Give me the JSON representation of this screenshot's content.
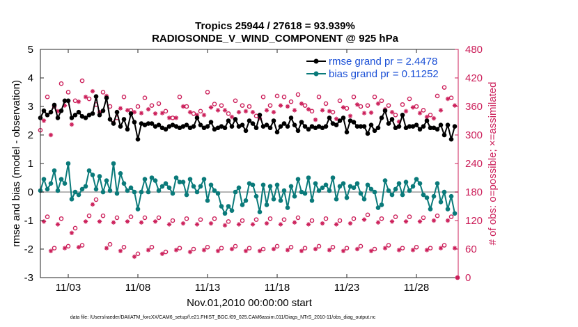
{
  "chart_data": {
    "type": "line",
    "title_line1": "Tropics 25944 / 27618 = 93.939%",
    "title_line2": "RADIOSONDE_V_WIND_COMPONENT @ 925 hPa",
    "xlabel": "Nov.01,2010 00:00:00 start",
    "ylabel_left": "rmse and bias (model - observation)",
    "ylabel_right": "# of obs: o=possible; ×=assimilated",
    "ylim_left": [
      -3,
      5
    ],
    "ylim_right": [
      0,
      480
    ],
    "xlim_days": [
      0.0,
      30.0
    ],
    "yticks_left": [
      "-3",
      "-2",
      "-1",
      "0",
      "1",
      "2",
      "3",
      "4",
      "5"
    ],
    "yticks_right": [
      "0",
      "60",
      "120",
      "180",
      "240",
      "300",
      "360",
      "420",
      "480"
    ],
    "xticks": [
      {
        "day": 2.0,
        "label": "11/03"
      },
      {
        "day": 7.0,
        "label": "11/08"
      },
      {
        "day": 12.0,
        "label": "11/13"
      },
      {
        "day": 17.0,
        "label": "11/18"
      },
      {
        "day": 22.0,
        "label": "11/23"
      },
      {
        "day": 27.0,
        "label": "11/28"
      }
    ],
    "zero_line": 0,
    "legend": [
      {
        "label": "rmse grand pr = 2.4478",
        "color": "#000000"
      },
      {
        "label": "bias grand pr = 0.11252",
        "color": "#0a7a7a"
      }
    ],
    "colors": {
      "rmse": "#000000",
      "bias": "#0a7a7a",
      "obs": "#cc1f5a",
      "zero": "#b5b5b5"
    },
    "footnote": "data file: /Users/raeder/DAI/ATM_forcXX/CAM6_setup/f.e21.FHIST_BGC.f09_025.CAM6assim.011/Diags_NTrS_2010-11/obs_diag_output.nc",
    "series": [
      {
        "name": "rmse",
        "x": [
          0.0,
          0.25,
          0.5,
          0.75,
          1.0,
          1.25,
          1.5,
          1.75,
          2.0,
          2.25,
          2.5,
          2.75,
          3.0,
          3.25,
          3.5,
          3.75,
          4.0,
          4.25,
          4.5,
          4.75,
          5.0,
          5.25,
          5.5,
          5.75,
          6.0,
          6.25,
          6.5,
          6.75,
          7.0,
          7.25,
          7.5,
          7.75,
          8.0,
          8.25,
          8.5,
          8.75,
          9.0,
          9.25,
          9.5,
          9.75,
          10.0,
          10.25,
          10.5,
          10.75,
          11.0,
          11.25,
          11.5,
          11.75,
          12.0,
          12.25,
          12.5,
          12.75,
          13.0,
          13.25,
          13.5,
          13.75,
          14.0,
          14.25,
          14.5,
          14.75,
          15.0,
          15.25,
          15.5,
          15.75,
          16.0,
          16.25,
          16.5,
          16.75,
          17.0,
          17.25,
          17.5,
          17.75,
          18.0,
          18.25,
          18.5,
          18.75,
          19.0,
          19.25,
          19.5,
          19.75,
          20.0,
          20.25,
          20.5,
          20.75,
          21.0,
          21.25,
          21.5,
          21.75,
          22.0,
          22.25,
          22.5,
          22.75,
          23.0,
          23.25,
          23.5,
          23.75,
          24.0,
          24.25,
          24.5,
          24.75,
          25.0,
          25.25,
          25.5,
          25.75,
          26.0,
          26.25,
          26.5,
          26.75,
          27.0,
          27.25,
          27.5,
          27.75,
          28.0,
          28.25,
          28.5,
          28.75,
          29.0,
          29.25,
          29.5,
          29.75
        ],
        "values": [
          2.6,
          2.85,
          2.7,
          2.8,
          3.05,
          2.6,
          2.85,
          3.2,
          3.2,
          2.6,
          2.7,
          2.8,
          2.65,
          2.6,
          2.7,
          2.75,
          3.35,
          2.7,
          2.85,
          3.3,
          2.55,
          2.4,
          2.8,
          2.3,
          2.55,
          2.2,
          2.75,
          2.45,
          1.85,
          2.4,
          2.35,
          2.4,
          2.4,
          2.3,
          2.35,
          2.25,
          2.2,
          2.3,
          2.35,
          2.3,
          2.25,
          2.3,
          2.35,
          2.25,
          2.3,
          2.6,
          2.35,
          2.25,
          2.3,
          2.45,
          2.2,
          2.25,
          2.3,
          2.25,
          2.5,
          2.3,
          2.55,
          2.3,
          2.35,
          2.15,
          2.5,
          2.4,
          2.25,
          2.7,
          2.3,
          2.35,
          2.25,
          2.5,
          2.1,
          2.3,
          2.4,
          2.3,
          2.6,
          2.35,
          2.15,
          2.45,
          2.3,
          2.2,
          2.3,
          2.25,
          2.3,
          2.25,
          2.3,
          2.6,
          2.4,
          2.35,
          2.5,
          2.6,
          2.1,
          2.5,
          2.45,
          2.3,
          2.3,
          2.3,
          2.05,
          2.35,
          2.15,
          2.25,
          2.6,
          2.85,
          2.4,
          2.55,
          2.25,
          2.3,
          2.7,
          2.25,
          2.3,
          2.3,
          2.35,
          2.2,
          2.3,
          2.5,
          2.25,
          2.25,
          2.2,
          2.35,
          2.0,
          2.35,
          1.85,
          2.3
        ]
      },
      {
        "name": "bias",
        "x": [
          0.0,
          0.25,
          0.5,
          0.75,
          1.0,
          1.25,
          1.5,
          1.75,
          2.0,
          2.25,
          2.5,
          2.75,
          3.0,
          3.25,
          3.5,
          3.75,
          4.0,
          4.25,
          4.5,
          4.75,
          5.0,
          5.25,
          5.5,
          5.75,
          6.0,
          6.25,
          6.5,
          6.75,
          7.0,
          7.25,
          7.5,
          7.75,
          8.0,
          8.25,
          8.5,
          8.75,
          9.0,
          9.25,
          9.5,
          9.75,
          10.0,
          10.25,
          10.5,
          10.75,
          11.0,
          11.25,
          11.5,
          11.75,
          12.0,
          12.25,
          12.5,
          12.75,
          13.0,
          13.25,
          13.5,
          13.75,
          14.0,
          14.25,
          14.5,
          14.75,
          15.0,
          15.25,
          15.5,
          15.75,
          16.0,
          16.25,
          16.5,
          16.75,
          17.0,
          17.25,
          17.5,
          17.75,
          18.0,
          18.25,
          18.5,
          18.75,
          19.0,
          19.25,
          19.5,
          19.75,
          20.0,
          20.25,
          20.5,
          20.75,
          21.0,
          21.25,
          21.5,
          21.75,
          22.0,
          22.25,
          22.5,
          22.75,
          23.0,
          23.25,
          23.5,
          23.75,
          24.0,
          24.25,
          24.5,
          24.75,
          25.0,
          25.25,
          25.5,
          25.75,
          26.0,
          26.25,
          26.5,
          26.75,
          27.0,
          27.25,
          27.5,
          27.75,
          28.0,
          28.25,
          28.5,
          28.75,
          29.0,
          29.25,
          29.5,
          29.75
        ],
        "values": [
          0.05,
          0.45,
          0.1,
          0.3,
          0.75,
          0.05,
          0.45,
          0.3,
          1.0,
          -0.25,
          0.0,
          -0.1,
          0.1,
          0.2,
          0.75,
          0.6,
          0.1,
          0.55,
          0.0,
          0.4,
          0.05,
          1.0,
          -0.05,
          0.65,
          0.3,
          0.05,
          0.15,
          0.0,
          -0.6,
          0.0,
          0.45,
          0.0,
          0.5,
          0.4,
          0.05,
          0.2,
          0.3,
          0.15,
          -0.05,
          0.5,
          0.35,
          0.35,
          -0.1,
          0.45,
          0.2,
          0.0,
          0.2,
          0.45,
          -0.3,
          0.25,
          0.05,
          -0.05,
          -0.5,
          -0.75,
          -0.5,
          -0.65,
          0.0,
          0.15,
          -0.45,
          -0.3,
          0.3,
          0.25,
          -0.15,
          -0.7,
          0.25,
          -0.45,
          0.2,
          -0.25,
          0.25,
          -0.3,
          0.05,
          -0.55,
          0.2,
          -0.15,
          0.45,
          0.0,
          -0.05,
          0.5,
          -0.3,
          0.3,
          0.05,
          0.15,
          0.25,
          0.05,
          0.5,
          -0.25,
          0.2,
          0.3,
          -0.2,
          0.2,
          0.15,
          0.3,
          -0.05,
          -0.25,
          0.25,
          0.1,
          0.0,
          -0.55,
          -0.45,
          0.4,
          0.05,
          -0.1,
          0.1,
          0.3,
          -0.1,
          0.35,
          0.05,
          0.2,
          0.45,
          0.3,
          -0.1,
          -0.2,
          -0.6,
          -0.15,
          0.3,
          -0.35,
          0.0,
          -0.6,
          -0.15,
          -0.75
        ]
      },
      {
        "name": "obs_possible_upper",
        "x": [
          0.0,
          0.5,
          1.0,
          1.5,
          2.0,
          2.5,
          3.0,
          3.5,
          4.0,
          4.5,
          5.0,
          5.5,
          6.0,
          6.5,
          7.0,
          7.5,
          8.0,
          8.5,
          9.0,
          9.5,
          10.0,
          10.5,
          11.0,
          11.5,
          12.0,
          12.5,
          13.0,
          13.5,
          14.0,
          14.5,
          15.0,
          15.5,
          16.0,
          16.5,
          17.0,
          17.5,
          18.0,
          18.5,
          19.0,
          19.5,
          20.0,
          20.5,
          21.0,
          21.5,
          22.0,
          22.5,
          23.0,
          23.5,
          24.0,
          24.5,
          25.0,
          25.5,
          26.0,
          26.5,
          27.0,
          27.5,
          28.0,
          28.5,
          29.0,
          29.5
        ],
        "values": [
          310,
          380,
          360,
          408,
          390,
          372,
          414,
          376,
          364,
          390,
          360,
          336,
          380,
          352,
          360,
          378,
          362,
          366,
          350,
          336,
          380,
          360,
          345,
          350,
          390,
          365,
          362,
          345,
          372,
          362,
          360,
          340,
          380,
          362,
          382,
          380,
          370,
          385,
          362,
          350,
          380,
          366,
          348,
          372,
          356,
          380,
          360,
          362,
          380,
          372,
          362,
          342,
          364,
          376,
          360,
          352,
          342,
          382,
          400,
          378
        ]
      },
      {
        "name": "obs_assimilated_upper",
        "x": [
          0.25,
          0.75,
          1.25,
          1.75,
          2.25,
          2.75,
          3.25,
          3.75,
          4.25,
          4.75,
          5.25,
          5.75,
          6.25,
          6.75,
          7.25,
          7.75,
          8.25,
          8.75,
          9.25,
          9.75,
          10.25,
          10.75,
          11.25,
          11.75,
          12.25,
          12.75,
          13.25,
          13.75,
          14.25,
          14.75,
          15.25,
          15.75,
          16.25,
          16.75,
          17.25,
          17.75,
          18.25,
          18.75,
          19.25,
          19.75,
          20.25,
          20.75,
          21.25,
          21.75,
          22.25,
          22.75,
          23.25,
          23.75,
          24.25,
          24.75,
          25.25,
          25.75,
          26.25,
          26.75,
          27.25,
          27.75,
          28.25,
          28.75,
          29.25,
          29.75
        ],
        "values": [
          330,
          300,
          350,
          362,
          322,
          370,
          380,
          392,
          348,
          382,
          326,
          356,
          352,
          348,
          346,
          354,
          345,
          346,
          336,
          336,
          360,
          348,
          342,
          342,
          358,
          352,
          352,
          338,
          348,
          350,
          348,
          335,
          352,
          348,
          362,
          360,
          352,
          366,
          354,
          332,
          352,
          350,
          334,
          358,
          340,
          364,
          346,
          347,
          366,
          354,
          348,
          328,
          350,
          358,
          346,
          338,
          335,
          352,
          376,
          362
        ]
      },
      {
        "name": "obs_possible_lower",
        "x": [
          0.5,
          1.0,
          1.5,
          2.0,
          2.5,
          3.0,
          3.5,
          4.0,
          4.5,
          5.0,
          5.5,
          6.0,
          6.5,
          7.0,
          7.5,
          8.0,
          8.5,
          9.0,
          9.5,
          10.0,
          10.5,
          11.0,
          11.5,
          12.0,
          12.5,
          13.0,
          13.5,
          14.0,
          14.5,
          15.0,
          15.5,
          16.0,
          16.5,
          17.0,
          17.5,
          18.0,
          18.5,
          19.0,
          19.5,
          20.0,
          20.5,
          21.0,
          21.5,
          22.0,
          22.5,
          23.0,
          23.5,
          24.0,
          24.5,
          25.0,
          25.5,
          26.0,
          26.5,
          27.0,
          27.5,
          28.0,
          28.5,
          29.0,
          29.5
        ],
        "values": [
          128,
          62,
          124,
          66,
          104,
          68,
          130,
          164,
          130,
          70,
          126,
          64,
          128,
          50,
          126,
          64,
          126,
          54,
          120,
          62,
          124,
          60,
          122,
          64,
          124,
          62,
          118,
          66,
          120,
          62,
          122,
          60,
          124,
          66,
          122,
          64,
          126,
          62,
          120,
          66,
          124,
          64,
          120,
          62,
          124,
          66,
          132,
          60,
          124,
          68,
          128,
          62,
          128,
          64,
          126,
          62,
          130,
          68,
          128
        ]
      },
      {
        "name": "obs_assimilated_lower",
        "x": [
          0.25,
          0.75,
          1.25,
          1.75,
          2.25,
          2.75,
          3.25,
          3.75,
          4.25,
          4.75,
          5.25,
          5.75,
          6.25,
          6.75,
          7.25,
          7.75,
          8.25,
          8.75,
          9.25,
          9.75,
          10.25,
          10.75,
          11.25,
          11.75,
          12.25,
          12.75,
          13.25,
          13.75,
          14.25,
          14.75,
          15.25,
          15.75,
          16.25,
          16.75,
          17.25,
          17.75,
          18.25,
          18.75,
          19.25,
          19.75,
          20.25,
          20.75,
          21.25,
          21.75,
          22.25,
          22.75,
          23.25,
          23.75,
          24.25,
          24.75,
          25.25,
          25.75,
          26.25,
          26.75,
          27.25,
          27.75,
          28.25,
          28.75,
          29.25,
          29.75
        ],
        "values": [
          118,
          56,
          112,
          62,
          94,
          64,
          118,
          154,
          118,
          62,
          116,
          56,
          118,
          44,
          116,
          58,
          118,
          50,
          112,
          58,
          114,
          54,
          112,
          58,
          114,
          56,
          110,
          60,
          112,
          56,
          112,
          56,
          114,
          60,
          112,
          58,
          116,
          56,
          112,
          60,
          114,
          58,
          112,
          56,
          114,
          60,
          122,
          56,
          116,
          62,
          118,
          58,
          118,
          58,
          118,
          58,
          120,
          62,
          120,
          62
        ]
      }
    ]
  }
}
